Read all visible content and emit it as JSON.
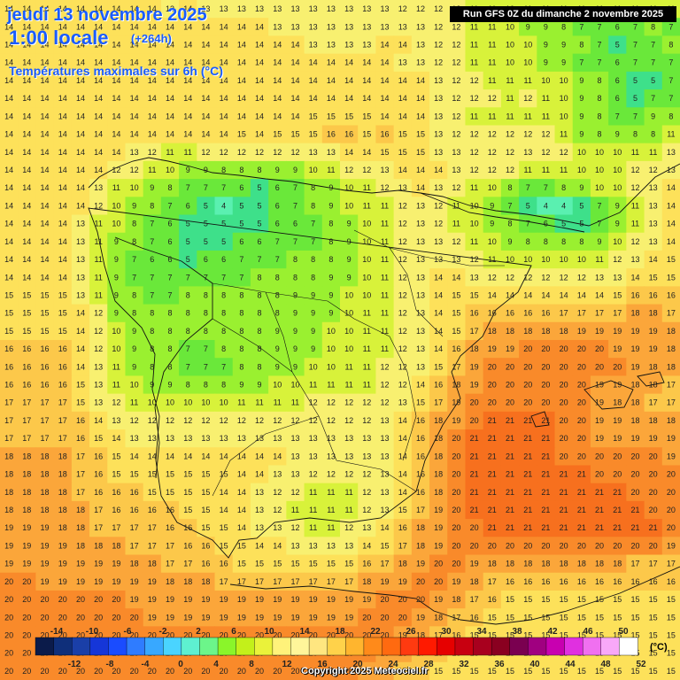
{
  "header": {
    "date": "jeudi 13 novembre 2025",
    "local_time": "1:00 locale",
    "offset": "(+264h)",
    "parameter": "Températures maximales sur 6h (°C)",
    "run": "Run GFS 0Z du dimanche 2 novembre 2025"
  },
  "legend": {
    "unit": "(°C)",
    "top_labels": [
      "-14",
      "-10",
      "-6",
      "-2",
      "2",
      "6",
      "10",
      "14",
      "18",
      "22",
      "26",
      "30",
      "34",
      "38",
      "42",
      "46",
      "50"
    ],
    "bottom_labels": [
      "-12",
      "-8",
      "-4",
      "0",
      "4",
      "8",
      "12",
      "16",
      "20",
      "24",
      "28",
      "32",
      "36",
      "40",
      "44",
      "48",
      "52"
    ],
    "colors": [
      "#0b1b4a",
      "#0f2f7a",
      "#1a3fa8",
      "#1536d8",
      "#1a4cff",
      "#2f7cff",
      "#38a8ff",
      "#4ad4ff",
      "#5ef0d0",
      "#6cf58a",
      "#8af52a",
      "#c3f01a",
      "#eaf23a",
      "#fff27a",
      "#fff59a",
      "#ffe680",
      "#ffd24a",
      "#ffb52e",
      "#ff8a1a",
      "#ff6a10",
      "#ff3a10",
      "#ff1a00",
      "#e60000",
      "#c80010",
      "#a8001e",
      "#8a0020",
      "#7a0050",
      "#a00080",
      "#c800b0",
      "#e030e0",
      "#f070f0",
      "#f8a8f8",
      "#ffffff"
    ]
  },
  "grid": {
    "rows": [
      "14 14 14 14 14 14 14 14 14 13 14 13 13 13 13 13 13 13 13 13 13 13 12 12 12 12 11 11 10 11 11 11 11 11 11 11 11 11",
      "14 14 14 14 14 14 14 14 14 14 14 14 14 14 14 13 13 13 13 13 13 13 13 13 12 12 11 11 10 9 9 8 7 7 6 7 8 7",
      "14 14 14 14 14 14 14 14 14 14 14 14 14 14 14 14 14 13 13 13 13 14 14 13 12 12 11 11 10 10 9 9 8 7 5 7 7 8",
      "14 14 14 14 14 14 14 14 14 14 14 14 14 14 14 14 14 14 14 14 14 14 13 13 12 12 11 11 10 10 9 9 7 7 6 7 7 7",
      "14 14 14 14 14 14 14 14 14 14 14 14 14 14 14 14 14 14 14 14 14 14 14 14 13 12 12 11 11 11 10 10 9 8 6 5 5 7",
      "14 14 14 14 14 14 14 14 14 14 14 14 14 14 14 14 14 14 14 14 14 14 14 14 13 12 12 12 11 12 11 10 9 8 6 5 7 7",
      "14 14 14 14 14 14 14 14 14 14 14 14 14 14 14 14 14 15 15 15 15 14 14 14 13 12 11 11 11 11 11 10 9 8 7 7 9 8",
      "14 14 14 14 14 14 14 14 14 14 14 14 14 15 14 15 15 15 16 16 15 16 15 15 13 12 12 12 12 12 12 11 9 8 9 8 8 11",
      "14 14 14 14 14 14 14 13 12 11 11 12 12 12 12 12 12 13 13 14 14 15 15 15 13 13 12 12 12 13 12 12 10 10 10 11 11 13",
      "14 14 14 14 14 14 12 12 11 10 9 9 8 8 8 9 9 10 11 12 12 13 14 14 14 13 12 12 12 11 11 11 10 10 10 12 12 13",
      "14 14 14 14 14 13 11 10 9 8 7 7 7 6 5 6 7 8 9 10 11 12 13 14 13 12 11 10 8 7 7 8 9 10 10 12 13 14",
      "14 14 14 14 14 12 10 9 8 7 6 5 4 5 5 6 7 8 9 10 11 11 12 13 12 11 10 9 7 5 4 4 5 7 9 11 13 14",
      "14 14 14 14 13 11 10 8 7 6 5 5 5 5 5 6 6 7 8 9 10 11 12 13 12 11 10 9 8 7 6 5 5 7 9 11 13 14",
      "14 14 14 14 13 11 9 8 7 6 5 5 5 6 6 7 7 7 8 9 10 11 12 13 13 12 11 10 9 8 8 8 8 9 10 12 13 14",
      "14 14 14 14 13 11 9 7 6 6 5 6 6 7 7 7 8 8 8 9 10 11 12 13 13 13 12 11 10 10 10 10 10 11 12 13 14 15",
      "14 14 14 14 13 11 9 7 7 7 7 7 7 7 8 8 8 8 9 9 10 11 12 13 14 14 13 12 12 12 12 12 12 13 13 14 15 15",
      "15 15 15 15 13 11 9 8 7 7 8 8 8 8 8 8 9 9 9 10 10 11 12 13 14 15 15 14 14 14 14 14 14 14 15 16 16 16",
      "15 15 15 15 14 12 9 8 8 8 8 8 8 8 8 8 9 9 9 10 11 11 12 13 14 15 16 16 16 16 16 17 17 17 17 18 18 17",
      "15 15 15 15 14 12 10 9 8 8 8 8 8 8 8 9 9 9 10 10 11 11 12 13 14 15 17 18 18 18 18 18 19 19 19 19 19 18",
      "16 16 16 16 14 12 10 9 8 8 7 7 8 8 8 9 9 9 10 10 11 11 12 13 14 16 18 19 19 20 20 20 20 20 19 19 19 18",
      "16 16 16 16 14 13 11 9 8 8 7 7 7 8 8 9 9 10 10 11 11 12 12 13 15 17 19 20 20 20 20 20 20 20 20 19 18 18",
      "16 16 16 16 15 13 11 10 9 9 8 8 8 9 9 10 10 11 11 11 11 12 12 14 16 18 19 20 20 20 20 20 20 19 19 18 18 17",
      "17 17 17 17 15 13 12 11 10 10 10 10 10 11 11 11 11 12 12 12 12 12 13 15 17 19 20 20 20 20 20 20 20 19 18 18 17 17",
      "17 17 17 17 16 14 13 12 12 12 12 12 12 12 12 12 12 12 12 12 12 13 14 16 18 19 20 21 21 21 21 20 20 19 19 18 18 18",
      "17 17 17 17 16 15 14 13 13 13 13 13 13 13 13 13 13 13 13 13 13 13 14 16 18 20 21 21 21 21 21 20 20 19 19 19 19 19",
      "18 18 18 18 17 16 15 14 14 14 14 14 14 14 14 14 13 13 13 13 13 13 14 16 18 20 21 21 21 21 21 20 20 20 20 20 20 19",
      "18 18 18 18 17 16 15 15 15 15 15 15 15 14 14 13 13 12 12 12 12 13 14 16 18 20 21 21 21 21 21 21 21 20 20 20 20 20",
      "18 18 18 18 17 16 16 16 15 15 15 15 14 14 13 12 12 11 11 11 12 13 14 16 18 20 21 21 21 21 21 21 21 21 21 20 20 20",
      "18 18 18 18 18 17 16 16 16 16 15 15 14 14 13 12 11 11 11 11 12 13 15 17 19 20 21 21 21 21 21 21 21 21 21 21 20 20",
      "19 19 19 18 18 17 17 17 17 16 16 15 15 14 13 13 12 11 11 12 13 14 16 18 19 20 20 21 21 21 21 21 21 21 21 21 21 20",
      "19 19 19 19 18 18 18 17 17 17 16 16 15 15 14 14 13 13 13 13 14 15 17 18 19 20 20 20 20 20 20 20 20 20 20 20 20 19",
      "19 19 19 19 19 19 19 18 18 17 17 16 16 15 15 15 15 15 15 15 16 17 18 19 20 20 19 18 18 18 18 18 18 18 18 17 17 17",
      "20 20 19 19 19 19 19 19 19 18 18 18 17 17 17 17 17 17 17 17 18 19 19 20 20 19 18 17 16 16 16 16 16 16 16 16 16 16",
      "20 20 20 20 20 20 20 19 19 19 19 19 19 19 19 19 19 19 19 19 19 20 20 20 19 18 17 16 15 15 15 15 15 15 15 15 15 15",
      "20 20 20 20 20 20 20 20 19 19 19 19 19 19 19 19 19 19 19 19 20 20 20 19 18 17 16 15 15 15 15 15 15 15 15 15 15 15",
      "20 20 20 20 20 20 20 20 20 20 20 20 20 20 20 20 20 20 20 20 20 20 19 18 17 16 15 15 15 15 15 15 15 15 15 15 15 15",
      "20 20 20 20 20 20 20 20 20 20 20 20 20 20 20 20 20 20 20 20 20 19 18 17 16 15 15 15 15 15 15 15 15 15 15 15 15 15",
      "20 20 20 20 20 20 20 20 20 20 20 20 20 20 20 20 20 20 20 20 19 18 17 16 15 15 15 15 15 15 15 15 15 15 15 15 15 15"
    ]
  }
}
